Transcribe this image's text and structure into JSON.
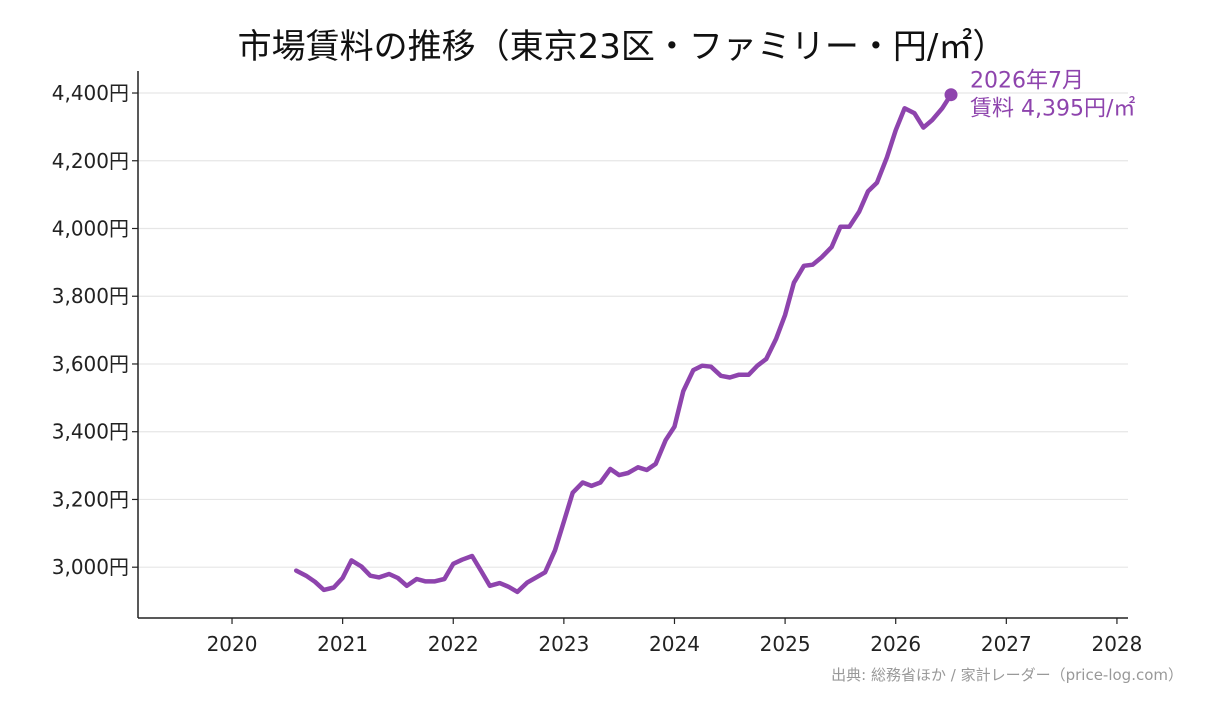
{
  "chart_data": {
    "type": "line",
    "title": "市場賃料の推移（東京23区・ファミリー・円/㎡）",
    "xlabel": "",
    "ylabel": "",
    "xlim": [
      2019.15,
      2028.1
    ],
    "ylim": [
      2850,
      4465
    ],
    "x_ticks": [
      2020,
      2021,
      2022,
      2023,
      2024,
      2025,
      2026,
      2027,
      2028
    ],
    "x_tick_labels": [
      "2020",
      "2021",
      "2022",
      "2023",
      "2024",
      "2025",
      "2026",
      "2027",
      "2028"
    ],
    "y_ticks": [
      3000,
      3200,
      3400,
      3600,
      3800,
      4000,
      4200,
      4400
    ],
    "y_tick_labels": [
      "3,000円",
      "3,200円",
      "3,400円",
      "3,600円",
      "3,800円",
      "4,000円",
      "4,200円",
      "4,400円"
    ],
    "grid": "horizontal",
    "series": [
      {
        "color": "#8e44ad",
        "x": [
          2020.58,
          2020.67,
          2020.75,
          2020.83,
          2020.92,
          2021.0,
          2021.08,
          2021.17,
          2021.25,
          2021.33,
          2021.42,
          2021.5,
          2021.58,
          2021.67,
          2021.75,
          2021.83,
          2021.92,
          2022.0,
          2022.08,
          2022.17,
          2022.25,
          2022.33,
          2022.42,
          2022.5,
          2022.58,
          2022.67,
          2022.75,
          2022.83,
          2022.92,
          2023.0,
          2023.08,
          2023.17,
          2023.25,
          2023.33,
          2023.42,
          2023.5,
          2023.58,
          2023.67,
          2023.75,
          2023.83,
          2023.92,
          2024.0,
          2024.08,
          2024.17,
          2024.25,
          2024.33,
          2024.42,
          2024.5,
          2024.58,
          2024.67,
          2024.75,
          2024.83,
          2024.92,
          2025.0,
          2025.08,
          2025.17,
          2025.25,
          2025.33,
          2025.42,
          2025.5,
          2025.58,
          2025.67,
          2025.75,
          2025.83,
          2025.92,
          2026.0,
          2026.08,
          2026.17,
          2026.25,
          2026.33,
          2026.42,
          2026.5
        ],
        "values": [
          2990,
          2975,
          2957,
          2933,
          2940,
          2968,
          3020,
          3002,
          2975,
          2970,
          2980,
          2968,
          2945,
          2965,
          2958,
          2958,
          2965,
          3010,
          3022,
          3033,
          2990,
          2945,
          2953,
          2942,
          2927,
          2955,
          2970,
          2985,
          3050,
          3135,
          3220,
          3250,
          3240,
          3250,
          3290,
          3272,
          3278,
          3295,
          3287,
          3305,
          3375,
          3415,
          3520,
          3582,
          3595,
          3592,
          3565,
          3560,
          3568,
          3568,
          3595,
          3615,
          3675,
          3745,
          3840,
          3890,
          3893,
          3915,
          3945,
          4005,
          4005,
          4050,
          4110,
          4135,
          4210,
          4290,
          4355,
          4340,
          4298,
          4320,
          4355,
          4395
        ]
      }
    ],
    "annotation": {
      "x": 2026.5,
      "y": 4395,
      "line1": "2026年7月",
      "line2": "賃料 4,395円/㎡"
    },
    "source": "出典: 総務省ほか / 家計レーダー（price-log.com）"
  }
}
